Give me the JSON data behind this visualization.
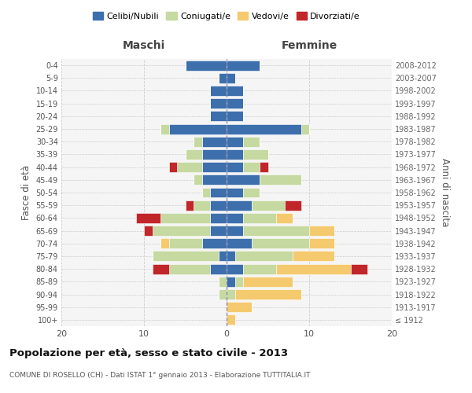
{
  "age_groups": [
    "100+",
    "95-99",
    "90-94",
    "85-89",
    "80-84",
    "75-79",
    "70-74",
    "65-69",
    "60-64",
    "55-59",
    "50-54",
    "45-49",
    "40-44",
    "35-39",
    "30-34",
    "25-29",
    "20-24",
    "15-19",
    "10-14",
    "5-9",
    "0-4"
  ],
  "birth_years": [
    "≤ 1912",
    "1913-1917",
    "1918-1922",
    "1923-1927",
    "1928-1932",
    "1933-1937",
    "1938-1942",
    "1943-1947",
    "1948-1952",
    "1953-1957",
    "1958-1962",
    "1963-1967",
    "1968-1972",
    "1973-1977",
    "1978-1982",
    "1983-1987",
    "1988-1992",
    "1993-1997",
    "1998-2002",
    "2003-2007",
    "2008-2012"
  ],
  "colors": {
    "celibi": "#3d6fad",
    "coniugati": "#c5d9a0",
    "vedovi": "#f5c96e",
    "divorziati": "#c0262a"
  },
  "maschi": {
    "celibi": [
      0,
      0,
      0,
      0,
      2,
      1,
      3,
      2,
      2,
      2,
      2,
      3,
      3,
      3,
      3,
      7,
      2,
      2,
      2,
      1,
      5
    ],
    "coniugati": [
      0,
      0,
      1,
      1,
      5,
      8,
      4,
      7,
      6,
      2,
      1,
      1,
      3,
      2,
      1,
      1,
      0,
      0,
      0,
      0,
      0
    ],
    "vedovi": [
      0,
      0,
      0,
      0,
      0,
      0,
      1,
      0,
      0,
      0,
      0,
      0,
      0,
      0,
      0,
      0,
      0,
      0,
      0,
      0,
      0
    ],
    "divorziati": [
      0,
      0,
      0,
      0,
      2,
      0,
      0,
      1,
      3,
      1,
      0,
      0,
      1,
      0,
      0,
      0,
      0,
      0,
      0,
      0,
      0
    ]
  },
  "femmine": {
    "celibi": [
      0,
      0,
      0,
      1,
      2,
      1,
      3,
      2,
      2,
      3,
      2,
      4,
      2,
      2,
      2,
      9,
      2,
      2,
      2,
      1,
      4
    ],
    "coniugati": [
      0,
      0,
      1,
      1,
      4,
      7,
      7,
      8,
      4,
      4,
      2,
      5,
      2,
      3,
      2,
      1,
      0,
      0,
      0,
      0,
      0
    ],
    "vedovi": [
      1,
      3,
      8,
      6,
      9,
      5,
      3,
      3,
      2,
      0,
      0,
      0,
      0,
      0,
      0,
      0,
      0,
      0,
      0,
      0,
      0
    ],
    "divorziati": [
      0,
      0,
      0,
      0,
      2,
      0,
      0,
      0,
      0,
      2,
      0,
      0,
      1,
      0,
      0,
      0,
      0,
      0,
      0,
      0,
      0
    ]
  },
  "title": "Popolazione per età, sesso e stato civile - 2013",
  "subtitle": "COMUNE DI ROSELLO (CH) - Dati ISTAT 1° gennaio 2013 - Elaborazione TUTTITALIA.IT",
  "xlabel_left": "Maschi",
  "xlabel_right": "Femmine",
  "ylabel_left": "Fasce di età",
  "ylabel_right": "Anni di nascita",
  "xlim": 20,
  "background_color": "#f5f5f5",
  "grid_color": "#cccccc"
}
